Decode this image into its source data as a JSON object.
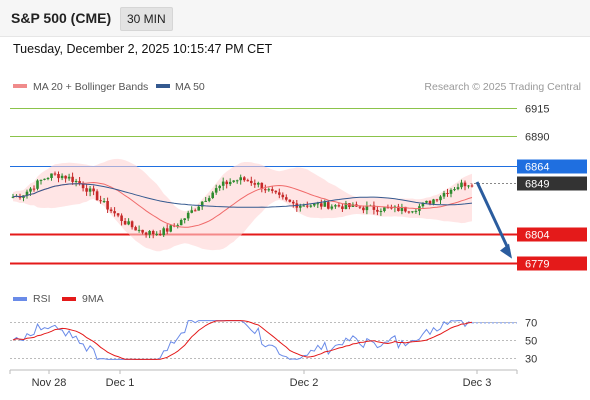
{
  "header": {
    "title": "S&P 500 (CME)",
    "timeframe": "30 MIN"
  },
  "datetime": "Tuesday, December 2, 2025 10:15:47 PM CET",
  "legend": {
    "ma20": "MA 20 + Bollinger Bands",
    "ma50": "MA 50",
    "credit": "Research © 2025 Trading Central",
    "rsi": "RSI",
    "rsi_ma": "9MA"
  },
  "colors": {
    "up": "#2e8b2e",
    "down": "#c62828",
    "ma20": "#f06a6a",
    "ma50": "#34598f",
    "band": "#ffd4d4",
    "target_line": "#8bc34a",
    "pivot": "#1f6fe0",
    "support": "#e41a1a",
    "last": "#333333",
    "rsi": "#6a8be8",
    "rsi_ma": "#e41a1a",
    "arrow": "#2b5c9e"
  },
  "chart_data": [
    {
      "type": "candlestick",
      "title": "",
      "x_ticks": [
        "Nov 28",
        "Dec 1",
        "Dec 2",
        "Dec 3"
      ],
      "ylim": [
        6762,
        6922
      ],
      "levels": [
        {
          "value": 6915,
          "label": "6915",
          "kind": "target"
        },
        {
          "value": 6890,
          "label": "6890",
          "kind": "target"
        },
        {
          "value": 6864,
          "label": "6864",
          "kind": "pivot"
        },
        {
          "value": 6849,
          "label": "6849",
          "kind": "last"
        },
        {
          "value": 6804,
          "label": "6804",
          "kind": "support"
        },
        {
          "value": 6779,
          "label": "6779",
          "kind": "support"
        }
      ],
      "key_points": [
        {
          "x": "Nov 28",
          "close": 6837
        },
        {
          "x": "Dec 1 open",
          "close": 6856
        },
        {
          "x": "Dec 1 low",
          "close": 6805
        },
        {
          "x": "Dec 1 late",
          "close": 6852
        },
        {
          "x": "Dec 2",
          "close": 6830
        },
        {
          "x": "Dec 2 late",
          "close": 6826
        },
        {
          "x": "Dec 3",
          "close": 6849
        }
      ],
      "forecast": {
        "from": 6849,
        "to": 6779,
        "direction": "down"
      }
    },
    {
      "type": "line",
      "title": "RSI",
      "ylim": [
        25,
        75
      ],
      "y_ticks": [
        70,
        50,
        30
      ],
      "series": [
        {
          "name": "RSI",
          "color": "#6a8be8"
        },
        {
          "name": "9MA",
          "color": "#e41a1a"
        }
      ]
    }
  ]
}
